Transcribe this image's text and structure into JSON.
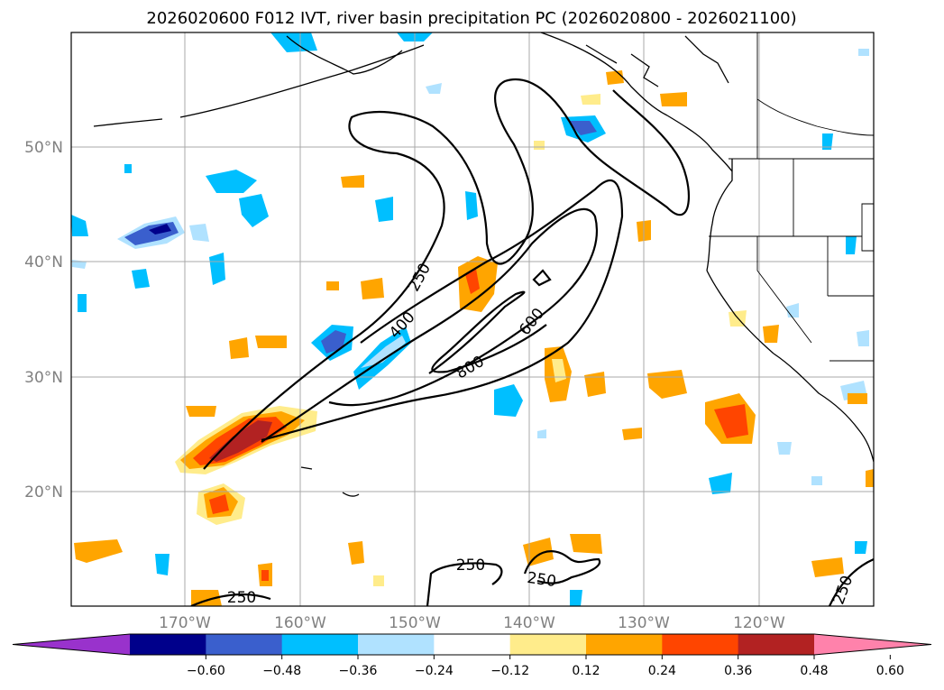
{
  "title": "2026020600 F012 IVT, river basin precipitation PC (2026020800 - 2026021100)",
  "map": {
    "lat_ticks": [
      "50°N",
      "40°N",
      "30°N",
      "20°N"
    ],
    "lon_ticks": [
      "170°W",
      "160°W",
      "150°W",
      "140°W",
      "130°W",
      "120°W"
    ],
    "ivt_contour_labels": [
      {
        "text": "250",
        "rotate": -62
      },
      {
        "text": "400",
        "rotate": -48
      },
      {
        "text": "600",
        "rotate": -52
      },
      {
        "text": "800",
        "rotate": -30
      },
      {
        "text": "250",
        "rotate": 0
      },
      {
        "text": "250",
        "rotate": 8
      },
      {
        "text": "250",
        "rotate": 0
      },
      {
        "text": "250",
        "rotate": -70
      }
    ]
  },
  "colorbar": {
    "colors": [
      "#9932cc",
      "#00008b",
      "#3a5fcd",
      "#00bfff",
      "#b0e2ff",
      "#ffffff",
      "#ffec8b",
      "#ffa500",
      "#ff4500",
      "#b22222",
      "#ff82ab"
    ],
    "labels": [
      "−0.60",
      "−0.48",
      "−0.36",
      "−0.24",
      "−0.12",
      "0.12",
      "0.24",
      "0.36",
      "0.48",
      "0.60"
    ]
  }
}
